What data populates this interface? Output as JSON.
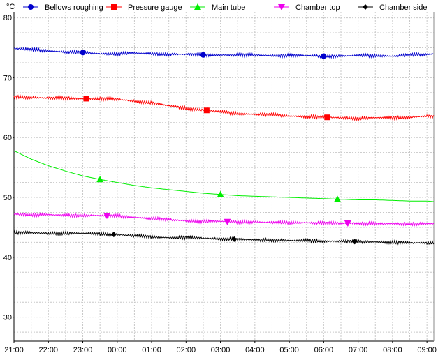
{
  "chart_data": {
    "type": "line",
    "ylabel": "°C",
    "ylim": [
      26,
      81
    ],
    "grid": true,
    "legend_position": "top",
    "x_tick_labels": [
      "21:00",
      "22:00",
      "23:00",
      "00:00",
      "01:00",
      "02:00",
      "03:00",
      "04:00",
      "05:00",
      "06:00",
      "07:00",
      "08:00",
      "09:00"
    ],
    "y_ticks": [
      30,
      40,
      50,
      60,
      70
    ],
    "y_top_label": "80",
    "x_hours": [
      0,
      0.5,
      1,
      1.5,
      2,
      2.5,
      3,
      3.5,
      4,
      4.5,
      5,
      5.5,
      6,
      6.5,
      7,
      7.5,
      8,
      8.5,
      9,
      9.5,
      10,
      10.5,
      11,
      11.5,
      12,
      12.2
    ],
    "series": [
      {
        "name": "Bellows roughing",
        "color": "#0000cc",
        "marker": "circle",
        "marker_x": [
          2.0,
          5.5,
          9.0
        ],
        "values": [
          74.9,
          74.7,
          74.5,
          74.3,
          74.2,
          74.0,
          74.0,
          74.1,
          74.0,
          73.9,
          73.9,
          73.8,
          73.8,
          73.8,
          73.8,
          73.7,
          73.7,
          73.7,
          73.6,
          73.6,
          73.7,
          73.7,
          73.6,
          73.8,
          73.9,
          74.0
        ]
      },
      {
        "name": "Pressure gauge",
        "color": "#ff0000",
        "marker": "square",
        "marker_x": [
          2.1,
          5.6,
          9.1
        ],
        "values": [
          66.8,
          66.7,
          66.6,
          66.6,
          66.5,
          66.5,
          66.4,
          66.1,
          65.8,
          65.3,
          64.9,
          64.6,
          64.3,
          64.0,
          63.9,
          63.8,
          63.6,
          63.5,
          63.4,
          63.3,
          63.2,
          63.3,
          63.3,
          63.4,
          63.6,
          63.5
        ]
      },
      {
        "name": "Main tube",
        "color": "#00ee00",
        "marker": "triangle-up",
        "marker_x": [
          2.5,
          6.0,
          9.4
        ],
        "values": [
          57.8,
          56.4,
          55.3,
          54.4,
          53.6,
          53.0,
          52.5,
          52.0,
          51.6,
          51.3,
          51.0,
          50.7,
          50.5,
          50.3,
          50.2,
          50.1,
          50.0,
          49.9,
          49.8,
          49.7,
          49.6,
          49.6,
          49.5,
          49.4,
          49.4,
          49.3
        ]
      },
      {
        "name": "Chamber top",
        "color": "#ee00ee",
        "marker": "triangle-down",
        "marker_x": [
          2.7,
          6.2,
          9.7
        ],
        "values": [
          47.2,
          47.1,
          47.1,
          47.0,
          47.0,
          47.0,
          46.9,
          46.7,
          46.5,
          46.3,
          46.1,
          46.0,
          46.0,
          45.9,
          45.9,
          45.8,
          45.8,
          45.8,
          45.7,
          45.7,
          45.7,
          45.6,
          45.6,
          45.6,
          45.6,
          45.6
        ]
      },
      {
        "name": "Chamber side",
        "color": "#000000",
        "marker": "diamond",
        "marker_x": [
          2.9,
          6.4,
          9.9
        ],
        "values": [
          44.1,
          44.1,
          44.0,
          44.0,
          44.0,
          43.9,
          43.8,
          43.6,
          43.4,
          43.3,
          43.3,
          43.2,
          43.1,
          43.0,
          42.9,
          42.9,
          42.8,
          42.8,
          42.7,
          42.7,
          42.6,
          42.6,
          42.5,
          42.4,
          42.4,
          42.4
        ]
      }
    ]
  }
}
